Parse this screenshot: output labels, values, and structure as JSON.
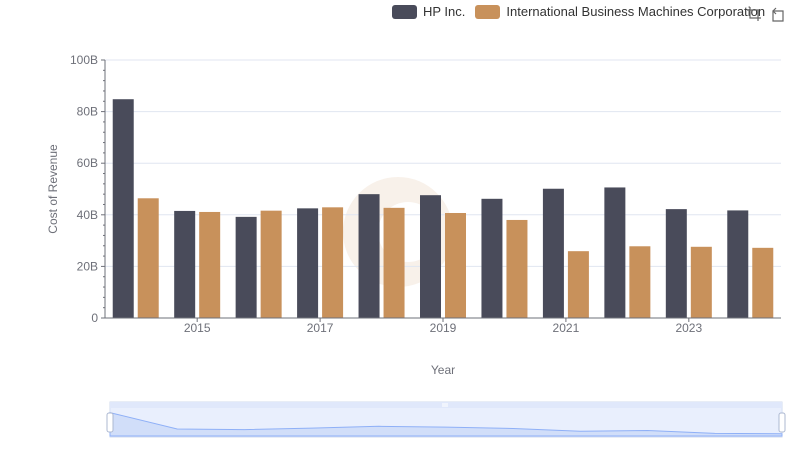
{
  "legend": {
    "items": [
      {
        "label": "HP Inc.",
        "color": "#494b5a"
      },
      {
        "label": "International Business Machines Corporation",
        "color": "#c8915b"
      }
    ]
  },
  "toolbox": {
    "icons": [
      "zoom-select-icon",
      "zoom-reset-icon"
    ]
  },
  "chart_data": {
    "type": "bar",
    "xlabel": "Year",
    "ylabel": "Cost of Revenue",
    "categories": [
      "2014",
      "2015",
      "2016",
      "2017",
      "2018",
      "2019",
      "2020",
      "2021",
      "2022",
      "2023",
      "2024"
    ],
    "x_tick_labels": [
      "2015",
      "2017",
      "2019",
      "2021",
      "2023"
    ],
    "y_tick_labels": [
      "0",
      "20B",
      "40B",
      "60B",
      "80B",
      "100B"
    ],
    "ylim": [
      0,
      100
    ],
    "unit": "B",
    "grid": true,
    "legend_position": "top-right",
    "series": [
      {
        "name": "HP Inc.",
        "color": "#494b5a",
        "values": [
          84.8,
          41.5,
          39.2,
          42.5,
          48.0,
          47.6,
          46.2,
          50.1,
          50.6,
          42.2,
          41.7
        ]
      },
      {
        "name": "International Business Machines Corporation",
        "color": "#c8915b",
        "values": [
          46.4,
          41.1,
          41.6,
          42.9,
          42.7,
          40.7,
          38.0,
          25.9,
          27.8,
          27.6,
          27.2
        ]
      }
    ]
  }
}
